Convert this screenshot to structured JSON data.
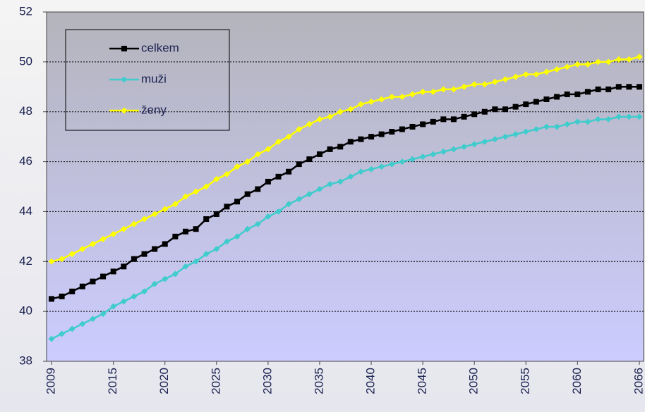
{
  "chart_data": {
    "type": "line",
    "x": [
      2009,
      2010,
      2011,
      2012,
      2013,
      2014,
      2015,
      2016,
      2017,
      2018,
      2019,
      2020,
      2021,
      2022,
      2023,
      2024,
      2025,
      2026,
      2027,
      2028,
      2029,
      2030,
      2031,
      2032,
      2033,
      2034,
      2035,
      2036,
      2037,
      2038,
      2039,
      2040,
      2041,
      2042,
      2043,
      2044,
      2045,
      2046,
      2047,
      2048,
      2049,
      2050,
      2051,
      2052,
      2053,
      2054,
      2055,
      2056,
      2057,
      2058,
      2059,
      2060,
      2061,
      2062,
      2063,
      2064,
      2065,
      2066
    ],
    "series": [
      {
        "name": "celkem",
        "color": "#000000",
        "marker": "square",
        "values": [
          40.5,
          40.6,
          40.8,
          41.0,
          41.2,
          41.4,
          41.6,
          41.8,
          42.1,
          42.3,
          42.5,
          42.7,
          43.0,
          43.2,
          43.3,
          43.7,
          43.9,
          44.2,
          44.4,
          44.7,
          44.9,
          45.2,
          45.4,
          45.6,
          45.9,
          46.1,
          46.3,
          46.5,
          46.6,
          46.8,
          46.9,
          47.0,
          47.1,
          47.2,
          47.3,
          47.4,
          47.5,
          47.6,
          47.7,
          47.7,
          47.8,
          47.9,
          48.0,
          48.1,
          48.1,
          48.2,
          48.3,
          48.4,
          48.5,
          48.6,
          48.7,
          48.7,
          48.8,
          48.9,
          48.9,
          49.0,
          49.0,
          49.0
        ]
      },
      {
        "name": "muži",
        "color": "#40cccc",
        "marker": "diamond",
        "values": [
          38.9,
          39.1,
          39.3,
          39.5,
          39.7,
          39.9,
          40.2,
          40.4,
          40.6,
          40.8,
          41.1,
          41.3,
          41.5,
          41.8,
          42.0,
          42.3,
          42.5,
          42.8,
          43.0,
          43.3,
          43.5,
          43.8,
          44.0,
          44.3,
          44.5,
          44.7,
          44.9,
          45.1,
          45.2,
          45.4,
          45.6,
          45.7,
          45.8,
          45.9,
          46.0,
          46.1,
          46.2,
          46.3,
          46.4,
          46.5,
          46.6,
          46.7,
          46.8,
          46.9,
          47.0,
          47.1,
          47.2,
          47.3,
          47.4,
          47.4,
          47.5,
          47.6,
          47.6,
          47.7,
          47.7,
          47.8,
          47.8,
          47.8
        ]
      },
      {
        "name": "ženy",
        "color": "#ffff00",
        "marker": "diamond",
        "values": [
          42.0,
          42.1,
          42.3,
          42.5,
          42.7,
          42.9,
          43.1,
          43.3,
          43.5,
          43.7,
          43.9,
          44.1,
          44.3,
          44.6,
          44.8,
          45.0,
          45.3,
          45.5,
          45.8,
          46.0,
          46.3,
          46.5,
          46.8,
          47.0,
          47.3,
          47.5,
          47.7,
          47.8,
          48.0,
          48.1,
          48.3,
          48.4,
          48.5,
          48.6,
          48.6,
          48.7,
          48.8,
          48.8,
          48.9,
          48.9,
          49.0,
          49.1,
          49.1,
          49.2,
          49.3,
          49.4,
          49.5,
          49.5,
          49.6,
          49.7,
          49.8,
          49.9,
          49.9,
          50.0,
          50.0,
          50.1,
          50.1,
          50.2
        ]
      }
    ],
    "xlim": [
      2009,
      2066
    ],
    "xticks": [
      2009,
      2015,
      2020,
      2025,
      2030,
      2035,
      2040,
      2045,
      2050,
      2055,
      2060,
      2066
    ],
    "ylim": [
      38,
      52
    ],
    "yticks": [
      38,
      40,
      42,
      44,
      46,
      48,
      50,
      52
    ],
    "grid": true,
    "legend": "top-left"
  }
}
